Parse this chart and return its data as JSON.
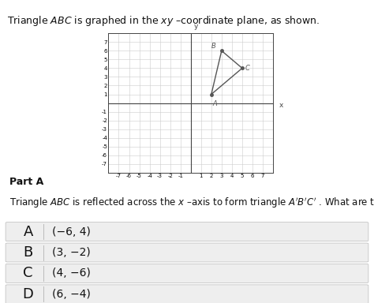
{
  "triangle": {
    "A": [
      2,
      1
    ],
    "B": [
      3,
      6
    ],
    "C": [
      5,
      4
    ]
  },
  "graph_xlim": [
    -8,
    8
  ],
  "graph_ylim": [
    -8,
    8
  ],
  "graph_xticks": [
    -7,
    -6,
    -5,
    -4,
    -3,
    -2,
    -1,
    1,
    2,
    3,
    4,
    5,
    6,
    7
  ],
  "graph_yticks": [
    -7,
    -6,
    -5,
    -4,
    -3,
    -2,
    -1,
    1,
    2,
    3,
    4,
    5,
    6,
    7
  ],
  "triangle_color": "#555555",
  "label_fontsize": 6,
  "choices": [
    {
      "letter": "A",
      "text": "(−6, 4)"
    },
    {
      "letter": "B",
      "text": "(3, −2)"
    },
    {
      "letter": "C",
      "text": "(4, −6)"
    },
    {
      "letter": "D",
      "text": "(6, −4)"
    }
  ],
  "choice_bg": "#eeeeee",
  "grid_color": "#cccccc",
  "axis_color": "#444444",
  "background_color": "#ffffff",
  "tick_fontsize": 5,
  "title_fontsize": 9,
  "part_a_fontsize": 9,
  "question_fontsize": 8.5,
  "choice_letter_fontsize": 13,
  "choice_text_fontsize": 10
}
